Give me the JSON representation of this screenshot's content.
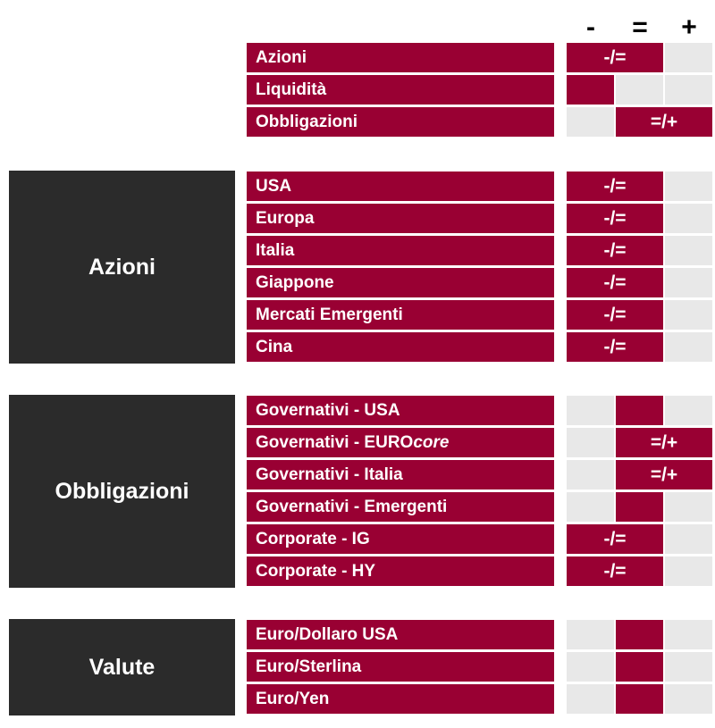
{
  "header": {
    "minus": "-",
    "equal": "=",
    "plus": "+"
  },
  "colors": {
    "accent": "#990033",
    "group_bg": "#2b2b2b",
    "empty_cell": "#e8e8e8"
  },
  "top": [
    {
      "label": "Azioni",
      "view": "-/="
    },
    {
      "label": "Liquidità",
      "view": "-"
    },
    {
      "label": "Obbligazioni",
      "view": "=/+"
    }
  ],
  "groups": [
    {
      "name": "Azioni",
      "rows": [
        {
          "label": "USA",
          "view": "-/="
        },
        {
          "label": "Europa",
          "view": "-/="
        },
        {
          "label": "Italia",
          "view": "-/="
        },
        {
          "label": "Giappone",
          "view": "-/="
        },
        {
          "label": "Mercati Emergenti",
          "view": "-/="
        },
        {
          "label": "Cina",
          "view": "-/="
        }
      ]
    },
    {
      "name": "Obbligazioni",
      "rows": [
        {
          "label": "Governativi - USA",
          "view": "="
        },
        {
          "label": "Governativi - EURO ",
          "label_italic": "core",
          "view": "=/+"
        },
        {
          "label": "Governativi - Italia",
          "view": "=/+"
        },
        {
          "label": "Governativi - Emergenti",
          "view": "="
        },
        {
          "label": "Corporate - IG",
          "view": "-/="
        },
        {
          "label": "Corporate - HY",
          "view": "-/="
        }
      ]
    },
    {
      "name": "Valute",
      "rows": [
        {
          "label": "Euro/Dollaro USA",
          "view": "="
        },
        {
          "label": "Euro/Sterlina",
          "view": "="
        },
        {
          "label": "Euro/Yen",
          "view": "="
        }
      ]
    }
  ]
}
